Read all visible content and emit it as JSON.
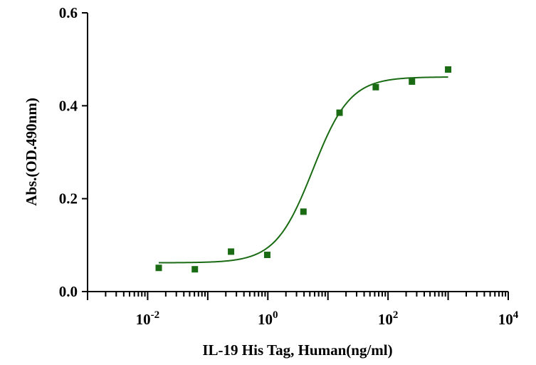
{
  "chart_data": {
    "type": "scatter",
    "title": "",
    "xlabel": "IL-19 His Tag, Human(ng/ml)",
    "ylabel": "Abs.(OD.490nm)",
    "x_scale": "log",
    "xlim": [
      0.001,
      10000
    ],
    "ylim": [
      0,
      0.6
    ],
    "yticks": [
      "0.0",
      "0.2",
      "0.4",
      "0.6"
    ],
    "xticks": [
      {
        "base": "10",
        "exp": "-2",
        "value": 0.01
      },
      {
        "base": "10",
        "exp": "0",
        "value": 1
      },
      {
        "base": "10",
        "exp": "2",
        "value": 100
      },
      {
        "base": "10",
        "exp": "4",
        "value": 10000
      }
    ],
    "grid": false,
    "legend": "none",
    "colors": {
      "points": "#1a6b14",
      "curve": "#1a6b14",
      "axis": "#000000"
    },
    "series": [
      {
        "x": [
          0.0153,
          0.061,
          0.244,
          0.977,
          3.91,
          15.6,
          62.5,
          250,
          1000
        ],
        "y": [
          0.051,
          0.048,
          0.086,
          0.079,
          0.172,
          0.385,
          0.44,
          0.452,
          0.478
        ]
      }
    ],
    "fit": {
      "type": "4PL",
      "bottom": 0.062,
      "top": 0.462,
      "ec50": 5.6,
      "hill": 1.4,
      "x_range": [
        0.0153,
        1000
      ]
    }
  }
}
